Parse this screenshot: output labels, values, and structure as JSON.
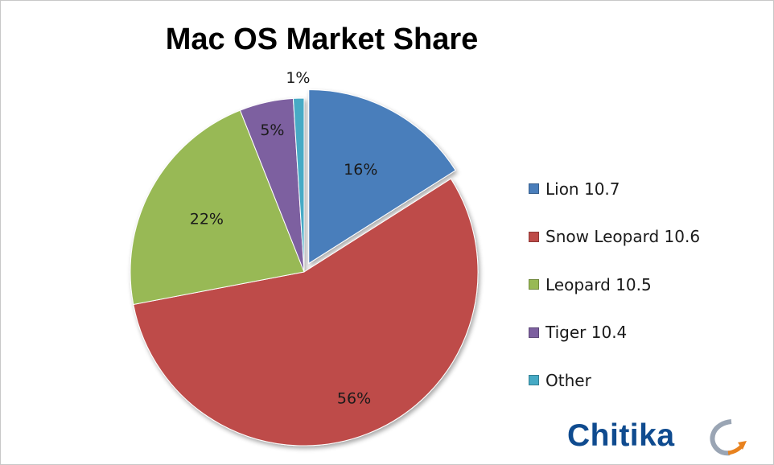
{
  "chart_data": {
    "type": "pie",
    "title": "Mac OS Market Share",
    "slices": [
      {
        "label": "Lion 10.7",
        "value": 16,
        "data_label": "16%",
        "color": "#4a7ebb",
        "exploded": true
      },
      {
        "label": "Snow Leopard 10.6",
        "value": 56,
        "data_label": "56%",
        "color": "#be4b48",
        "exploded": false
      },
      {
        "label": "Leopard 10.5",
        "value": 22,
        "data_label": "22%",
        "color": "#98b954",
        "exploded": false
      },
      {
        "label": "Tiger 10.4",
        "value": 5,
        "data_label": "5%",
        "color": "#7d60a0",
        "exploded": false
      },
      {
        "label": "Other",
        "value": 1,
        "data_label": "1%",
        "color": "#46aac5",
        "exploded": false
      }
    ],
    "legend_position": "right"
  },
  "logo": {
    "text": "Chitika",
    "text_color": "#0f4b8f",
    "accent_color": "#e8821e"
  }
}
